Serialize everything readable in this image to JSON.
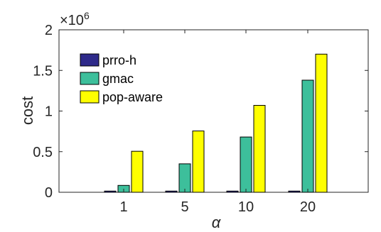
{
  "chart_data": {
    "type": "bar",
    "categories": [
      "1",
      "5",
      "10",
      "20"
    ],
    "series": [
      {
        "name": "prro-h",
        "color": "#2e2a8a",
        "values": [
          15000,
          15000,
          15000,
          15000
        ]
      },
      {
        "name": "gmac",
        "color": "#3dbf9b",
        "values": [
          85000,
          350000,
          680000,
          1380000
        ]
      },
      {
        "name": "pop-aware",
        "color": "#ffff00",
        "values": [
          505000,
          755000,
          1070000,
          1700000
        ]
      }
    ],
    "xlabel": "α",
    "ylabel": "cost",
    "ylim": [
      0,
      2000000
    ],
    "yticks": [
      0,
      500000,
      1000000,
      1500000,
      2000000
    ],
    "ytick_labels": [
      "0",
      "0.5",
      "1",
      "1.5",
      "2"
    ],
    "y_exponent": {
      "base": "×10",
      "power": "6"
    },
    "legend_position": "top-left",
    "grid": false
  }
}
